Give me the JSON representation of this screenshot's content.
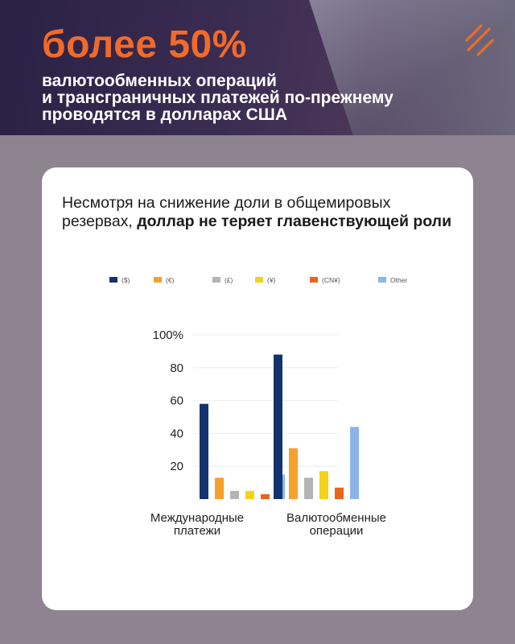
{
  "header": {
    "headline": "более 50%",
    "subhead_lines": [
      "валютообменных операций",
      "и трансграничных платежей по-прежнему",
      "проводятся в долларах США"
    ],
    "logo_icon": "slash-stripes-logo-icon"
  },
  "card": {
    "text_plain": "Несмотря на снижение доли в общемировых резервах, ",
    "text_bold": "доллар не теряет главенствующей роли"
  },
  "colors": {
    "accent": "#f26a2a",
    "usd": "#14336e",
    "eur": "#f7a02c",
    "gbp": "#b4b4b4",
    "jpy": "#f2d31a",
    "cny": "#e8661c",
    "other": "#8db4e8"
  },
  "chart_data": {
    "type": "bar",
    "categories": [
      "Международные платежи",
      "Валютообменные операции"
    ],
    "category_lines": [
      [
        "Международные",
        "платежи"
      ],
      [
        "Валютообменные",
        "операции"
      ]
    ],
    "series": [
      {
        "name": "($)",
        "values": [
          58,
          88
        ]
      },
      {
        "name": "(€)",
        "values": [
          13,
          31
        ]
      },
      {
        "name": "(£)",
        "values": [
          5,
          13
        ]
      },
      {
        "name": "(¥)",
        "values": [
          5,
          17
        ]
      },
      {
        "name": "(CN¥)",
        "values": [
          3,
          7
        ]
      },
      {
        "name": "Other",
        "values": [
          15,
          44
        ]
      }
    ],
    "y_ticks": [
      "20",
      "40",
      "60",
      "80",
      "100%"
    ],
    "y_tick_values": [
      20,
      40,
      60,
      80,
      100
    ],
    "ylim": [
      0,
      100
    ],
    "grid": true,
    "legend_position": "top"
  }
}
